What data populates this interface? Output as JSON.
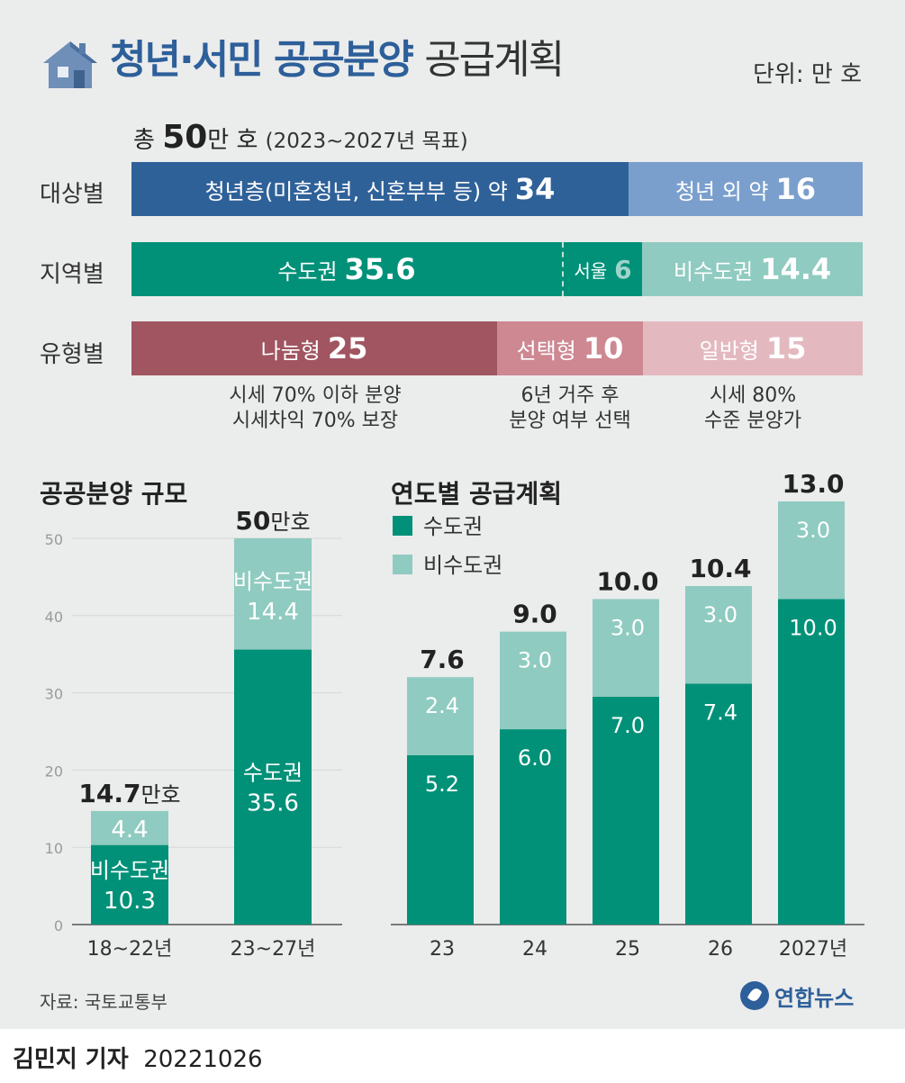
{
  "title": {
    "main": "청년·서민 공공분양",
    "sub": "공급계획"
  },
  "unit": "단위: 만 호",
  "total": {
    "prefix": "총",
    "value": "50",
    "suffix": "만 호",
    "period": "(2023~2027년 목표)"
  },
  "rows": {
    "target": {
      "label": "대상별",
      "seg1": {
        "label": "청년층(미혼청년, 신혼부부 등) 약",
        "value": "34"
      },
      "seg2": {
        "label": "청년 외 약",
        "value": "16"
      }
    },
    "region": {
      "label": "지역별",
      "seg1": {
        "label": "수도권",
        "value": "35.6"
      },
      "seg1b": {
        "label": "서울",
        "value": "6"
      },
      "seg2": {
        "label": "비수도권",
        "value": "14.4"
      }
    },
    "type": {
      "label": "유형별",
      "seg1": {
        "label": "나눔형",
        "value": "25"
      },
      "seg2": {
        "label": "선택형",
        "value": "10"
      },
      "seg3": {
        "label": "일반형",
        "value": "15"
      }
    }
  },
  "notes": {
    "n1a": "시세 70% 이하 분양",
    "n1b": "시세차익 70% 보장",
    "n2a": "6년 거주 후",
    "n2b": "분양 여부 선택",
    "n3a": "시세 80%",
    "n3b": "수준 분양가"
  },
  "colors": {
    "capital": "#009178",
    "noncapital": "#8fcbc0",
    "blue_dark": "#2f6199",
    "blue_light": "#7b9fcc",
    "type1": "#a05561",
    "type2": "#cd8892",
    "type3": "#e3b9bf"
  },
  "chart_data": [
    {
      "type": "bar",
      "title": "공공분양 규모",
      "categories": [
        "18~22년",
        "23~27년"
      ],
      "series": [
        {
          "name": "수도권",
          "values": [
            10.3,
            35.6
          ]
        },
        {
          "name": "비수도권",
          "values": [
            4.4,
            14.4
          ]
        }
      ],
      "totals": [
        "14.7",
        "50"
      ],
      "total_suffix": "만호",
      "series_labels_in_bar": [
        "",
        "비수도권",
        "",
        "수도권"
      ],
      "ylim": [
        0,
        50
      ],
      "yticks": [
        0,
        10,
        20,
        30,
        40,
        50
      ]
    },
    {
      "type": "bar",
      "title": "연도별 공급계획",
      "categories": [
        "23",
        "24",
        "25",
        "26",
        "2027년"
      ],
      "series": [
        {
          "name": "수도권",
          "values": [
            5.2,
            6.0,
            7.0,
            7.4,
            10.0
          ]
        },
        {
          "name": "비수도권",
          "values": [
            2.4,
            3.0,
            3.0,
            3.0,
            3.0
          ]
        }
      ],
      "totals": [
        7.6,
        9.0,
        10.0,
        10.4,
        13.0
      ],
      "legend": [
        "수도권",
        "비수도권"
      ]
    }
  ],
  "footer": {
    "source": "자료: 국토교통부",
    "brand": "연합뉴스",
    "credit_name": "김민지 기자",
    "credit_date": "20221026"
  }
}
